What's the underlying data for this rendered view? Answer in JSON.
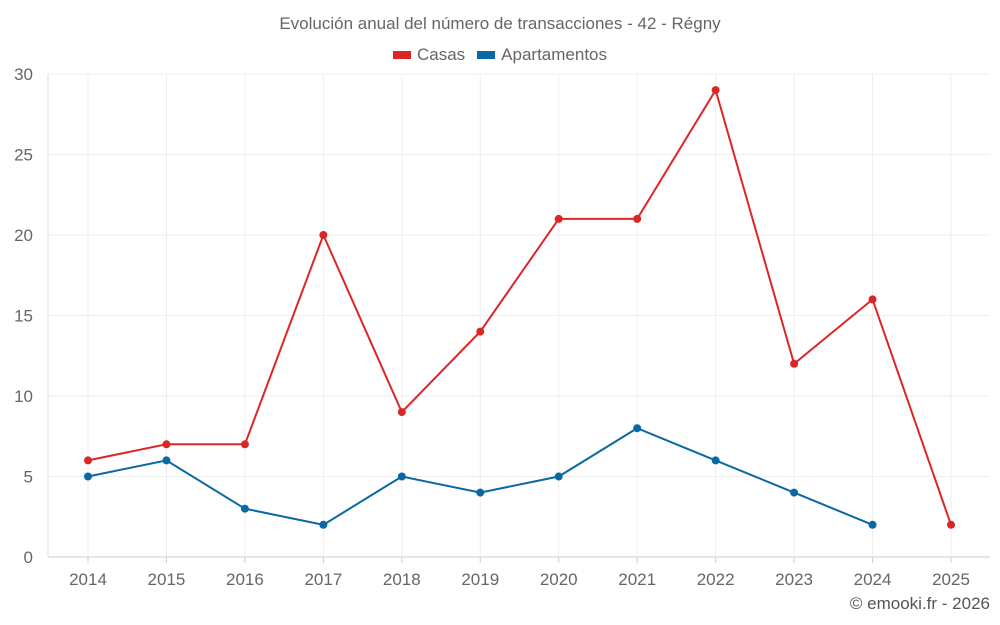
{
  "chart_data": {
    "type": "line",
    "title": "Evolución anual del número de transacciones - 42 - Régny",
    "xlabel": "",
    "ylabel": "",
    "categories": [
      "2014",
      "2015",
      "2016",
      "2017",
      "2018",
      "2019",
      "2020",
      "2021",
      "2022",
      "2023",
      "2024",
      "2025"
    ],
    "yticks": [
      "0",
      "5",
      "10",
      "15",
      "20",
      "25",
      "30"
    ],
    "ylim": [
      0,
      30
    ],
    "grid": true,
    "legend_position": "top-center",
    "series": [
      {
        "name": "Casas",
        "color": "#dc2626",
        "values": [
          6,
          7,
          7,
          20,
          9,
          14,
          21,
          21,
          29,
          12,
          16,
          2
        ]
      },
      {
        "name": "Apartamentos",
        "color": "#0a68a2",
        "values": [
          5,
          6,
          3,
          2,
          5,
          4,
          5,
          8,
          6,
          4,
          2,
          null
        ]
      }
    ]
  },
  "credit": "© emooki.fr - 2026"
}
